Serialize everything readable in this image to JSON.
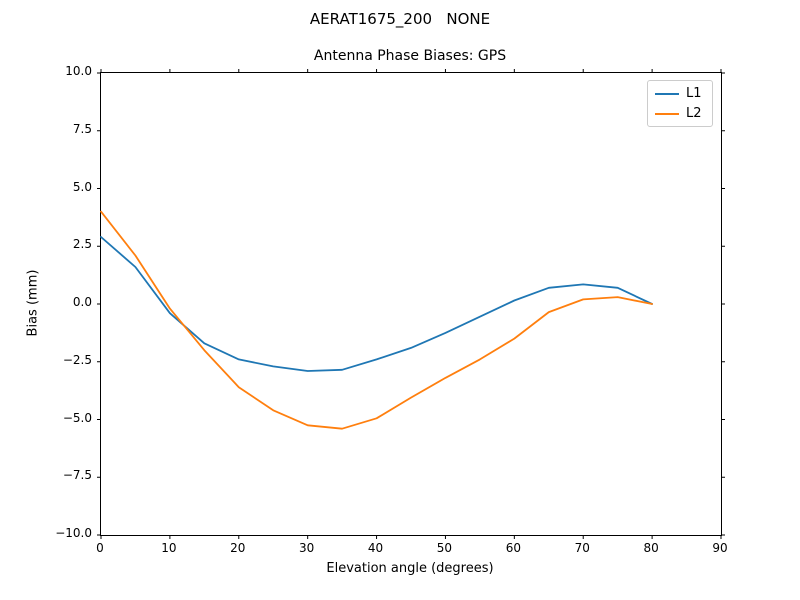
{
  "figure": {
    "suptitle": "AERAT1675_200   NONE"
  },
  "chart_data": {
    "type": "line",
    "title": "Antenna Phase Biases: GPS",
    "xlabel": "Elevation angle (degrees)",
    "ylabel": "Bias (mm)",
    "xlim": [
      0,
      90
    ],
    "ylim": [
      -10,
      10
    ],
    "grid": false,
    "legend_position": "upper right",
    "xtick_values": [
      0,
      10,
      20,
      30,
      40,
      50,
      60,
      70,
      80,
      90
    ],
    "xtick_labels": [
      "0",
      "10",
      "20",
      "30",
      "40",
      "50",
      "60",
      "70",
      "80",
      "90"
    ],
    "ytick_values": [
      -10,
      -7.5,
      -5,
      -2.5,
      0,
      2.5,
      5,
      7.5,
      10
    ],
    "ytick_labels": [
      "−10.0",
      "−7.5",
      "−5.0",
      "−2.5",
      "0.0",
      "2.5",
      "5.0",
      "7.5",
      "10.0"
    ],
    "x": [
      0,
      5,
      10,
      15,
      20,
      25,
      30,
      35,
      40,
      45,
      50,
      55,
      60,
      65,
      70,
      75,
      80
    ],
    "series": [
      {
        "name": "L1",
        "color": "#1f77b4",
        "values": [
          2.9,
          1.6,
          -0.4,
          -1.7,
          -2.4,
          -2.7,
          -2.9,
          -2.85,
          -2.4,
          -1.9,
          -1.25,
          -0.55,
          0.15,
          0.7,
          0.85,
          0.7,
          0.0
        ]
      },
      {
        "name": "L2",
        "color": "#ff7f0e",
        "values": [
          4.0,
          2.1,
          -0.2,
          -2.0,
          -3.6,
          -4.6,
          -5.25,
          -5.4,
          -4.95,
          -4.05,
          -3.2,
          -2.4,
          -1.5,
          -0.35,
          0.2,
          0.3,
          0.0
        ]
      }
    ],
    "colors": {
      "spine": "#000000",
      "text": "#000000",
      "legend_border": "#cccccc"
    }
  }
}
